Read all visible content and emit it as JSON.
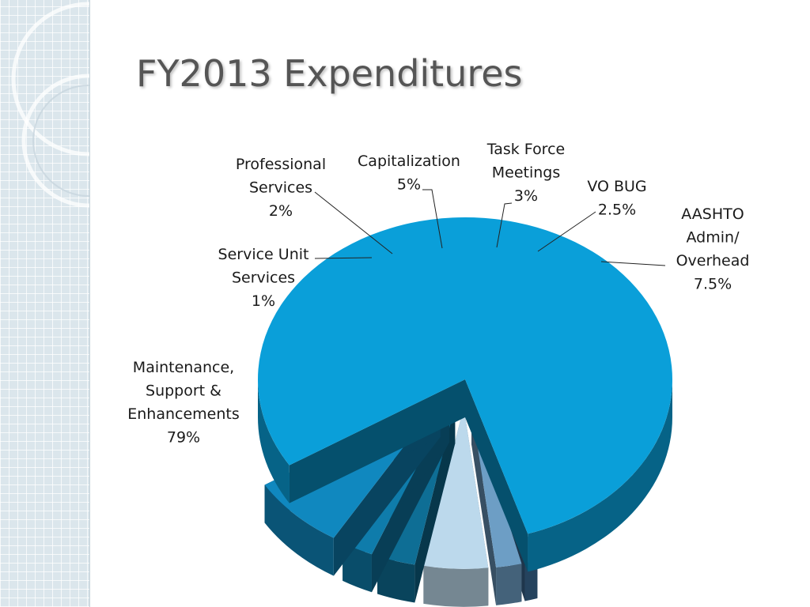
{
  "slide": {
    "title": "FY2013 Expenditures"
  },
  "chart_data": {
    "type": "pie",
    "title": "",
    "exploded": true,
    "three_d": true,
    "legend": "none",
    "slices": [
      {
        "label_lines": [
          "Maintenance,",
          "Support &",
          "Enhancements"
        ],
        "value": 79,
        "value_label": "79%",
        "color": "#0a9fd9",
        "exploded": false
      },
      {
        "label_lines": [
          "Service Unit",
          "Services"
        ],
        "value": 1,
        "value_label": "1%",
        "color": "#3c6c98",
        "exploded": true
      },
      {
        "label_lines": [
          "Professional",
          "Services"
        ],
        "value": 2,
        "value_label": "2%",
        "color": "#6d9ec5",
        "exploded": true
      },
      {
        "label_lines": [
          "Capitalization"
        ],
        "value": 5,
        "value_label": "5%",
        "color": "#bcd9ec",
        "exploded": true
      },
      {
        "label_lines": [
          "Task Force",
          "Meetings"
        ],
        "value": 3,
        "value_label": "3%",
        "color": "#0e6e95",
        "exploded": true
      },
      {
        "label_lines": [
          "VO BUG"
        ],
        "value": 2.5,
        "value_label": "2.5%",
        "color": "#0f7cab",
        "exploded": true
      },
      {
        "label_lines": [
          "AASHTO",
          "Admin/",
          "Overhead"
        ],
        "value": 7.5,
        "value_label": "7.5%",
        "color": "#1088bf",
        "exploded": true
      }
    ]
  }
}
